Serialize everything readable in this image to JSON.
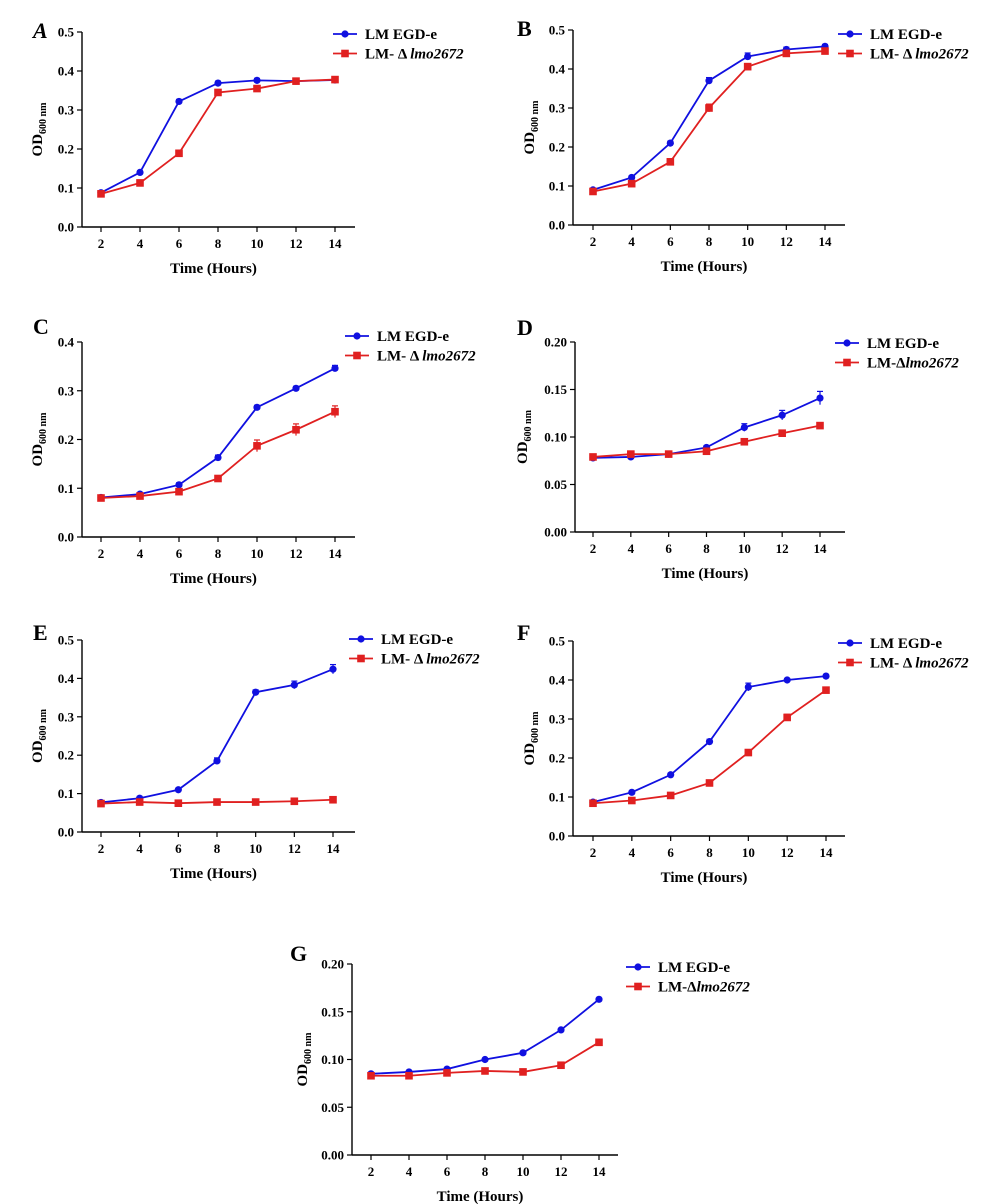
{
  "chart_data": [
    {
      "panel": "A",
      "type": "line",
      "xlabel": "Time (Hours)",
      "ylabel_main": "OD",
      "ylabel_sub": "600 nm",
      "x": [
        2,
        4,
        6,
        8,
        10,
        12,
        14
      ],
      "ylim": [
        0,
        0.5
      ],
      "yticks": [
        0.0,
        0.1,
        0.2,
        0.3,
        0.4,
        0.5
      ],
      "ytick_labels": [
        "0.0",
        "0.1",
        "0.2",
        "0.3",
        "0.4",
        "0.5"
      ],
      "series": [
        {
          "name_prefix": "LM EGD-e",
          "name_italic": "",
          "color": "#1010e0",
          "marker": "circle",
          "values": [
            0.088,
            0.14,
            0.322,
            0.369,
            0.376,
            0.374,
            0.377
          ],
          "errors": [
            0.004,
            0.004,
            0.005,
            0.005,
            0.005,
            0.005,
            0.005
          ]
        },
        {
          "name_prefix": "LM- Δ ",
          "name_italic": "lmo2672",
          "color": "#e02020",
          "marker": "square",
          "values": [
            0.085,
            0.113,
            0.189,
            0.345,
            0.355,
            0.374,
            0.378
          ],
          "errors": [
            0.003,
            0.004,
            0.006,
            0.006,
            0.006,
            0.005,
            0.005
          ]
        }
      ]
    },
    {
      "panel": "B",
      "type": "line",
      "xlabel": "Time (Hours)",
      "ylabel_main": "OD",
      "ylabel_sub": "600 nm",
      "x": [
        2,
        4,
        6,
        8,
        10,
        12,
        14
      ],
      "ylim": [
        0,
        0.5
      ],
      "yticks": [
        0.0,
        0.1,
        0.2,
        0.3,
        0.4,
        0.5
      ],
      "ytick_labels": [
        "0.0",
        "0.1",
        "0.2",
        "0.3",
        "0.4",
        "0.5"
      ],
      "series": [
        {
          "name_prefix": "LM EGD-e",
          "name_italic": "",
          "color": "#1010e0",
          "marker": "circle",
          "values": [
            0.09,
            0.122,
            0.21,
            0.37,
            0.432,
            0.45,
            0.458
          ],
          "errors": [
            0.004,
            0.004,
            0.005,
            0.008,
            0.009,
            0.006,
            0.005
          ]
        },
        {
          "name_prefix": "LM- Δ ",
          "name_italic": "lmo2672",
          "color": "#e02020",
          "marker": "square",
          "values": [
            0.086,
            0.106,
            0.162,
            0.3,
            0.406,
            0.44,
            0.446
          ],
          "errors": [
            0.003,
            0.004,
            0.005,
            0.01,
            0.008,
            0.006,
            0.005
          ]
        }
      ]
    },
    {
      "panel": "C",
      "type": "line",
      "xlabel": "Time (Hours)",
      "ylabel_main": "OD",
      "ylabel_sub": "600 nm",
      "x": [
        2,
        4,
        6,
        8,
        10,
        12,
        14
      ],
      "ylim": [
        0,
        0.4
      ],
      "yticks": [
        0.0,
        0.1,
        0.2,
        0.3,
        0.4
      ],
      "ytick_labels": [
        "0.0",
        "0.1",
        "0.2",
        "0.3",
        "0.4"
      ],
      "series": [
        {
          "name_prefix": "LM EGD-e",
          "name_italic": "",
          "color": "#1010e0",
          "marker": "circle",
          "values": [
            0.081,
            0.088,
            0.107,
            0.163,
            0.266,
            0.305,
            0.346
          ],
          "errors": [
            0.003,
            0.003,
            0.004,
            0.005,
            0.004,
            0.004,
            0.006
          ]
        },
        {
          "name_prefix": "LM- Δ ",
          "name_italic": "lmo2672",
          "color": "#e02020",
          "marker": "square",
          "values": [
            0.08,
            0.084,
            0.093,
            0.12,
            0.187,
            0.22,
            0.257
          ],
          "errors": [
            0.003,
            0.003,
            0.003,
            0.004,
            0.012,
            0.012,
            0.012
          ]
        }
      ]
    },
    {
      "panel": "D",
      "type": "line",
      "xlabel": "Time (Hours)",
      "ylabel_main": "OD",
      "ylabel_sub": "600 nm",
      "x": [
        2,
        4,
        6,
        8,
        10,
        12,
        14
      ],
      "ylim": [
        0,
        0.2
      ],
      "yticks": [
        0.0,
        0.05,
        0.1,
        0.15,
        0.2
      ],
      "ytick_labels": [
        "0.00",
        "0.05",
        "0.10",
        "0.15",
        "0.20"
      ],
      "series": [
        {
          "name_prefix": "LM EGD-e",
          "name_italic": "",
          "color": "#1010e0",
          "marker": "circle",
          "values": [
            0.078,
            0.079,
            0.082,
            0.089,
            0.11,
            0.123,
            0.141
          ],
          "errors": [
            0.001,
            0.001,
            0.001,
            0.002,
            0.004,
            0.005,
            0.007
          ]
        },
        {
          "name_prefix": "LM-Δ",
          "name_italic": "lmo2672",
          "color": "#e02020",
          "marker": "square",
          "values": [
            0.079,
            0.082,
            0.082,
            0.085,
            0.095,
            0.104,
            0.112
          ],
          "errors": [
            0.001,
            0.001,
            0.001,
            0.001,
            0.001,
            0.001,
            0.003
          ]
        }
      ]
    },
    {
      "panel": "E",
      "type": "line",
      "xlabel": "Time (Hours)",
      "ylabel_main": "OD",
      "ylabel_sub": "600 nm",
      "x": [
        2,
        4,
        6,
        8,
        10,
        12,
        14
      ],
      "ylim": [
        0,
        0.5
      ],
      "yticks": [
        0.0,
        0.1,
        0.2,
        0.3,
        0.4,
        0.5
      ],
      "ytick_labels": [
        "0.0",
        "0.1",
        "0.2",
        "0.3",
        "0.4",
        "0.5"
      ],
      "series": [
        {
          "name_prefix": "LM EGD-e",
          "name_italic": "",
          "color": "#1010e0",
          "marker": "circle",
          "values": [
            0.077,
            0.088,
            0.11,
            0.185,
            0.364,
            0.383,
            0.424
          ],
          "errors": [
            0.003,
            0.003,
            0.004,
            0.008,
            0.006,
            0.01,
            0.012
          ]
        },
        {
          "name_prefix": "LM- Δ ",
          "name_italic": "lmo2672",
          "color": "#e02020",
          "marker": "square",
          "values": [
            0.074,
            0.078,
            0.075,
            0.078,
            0.078,
            0.08,
            0.084
          ],
          "errors": [
            0.002,
            0.002,
            0.002,
            0.002,
            0.002,
            0.002,
            0.002
          ]
        }
      ]
    },
    {
      "panel": "F",
      "type": "line",
      "xlabel": "Time (Hours)",
      "ylabel_main": "OD",
      "ylabel_sub": "600 nm",
      "x": [
        2,
        4,
        6,
        8,
        10,
        12,
        14
      ],
      "ylim": [
        0,
        0.5
      ],
      "yticks": [
        0.0,
        0.1,
        0.2,
        0.3,
        0.4,
        0.5
      ],
      "ytick_labels": [
        "0.0",
        "0.1",
        "0.2",
        "0.3",
        "0.4",
        "0.5"
      ],
      "series": [
        {
          "name_prefix": "LM EGD-e",
          "name_italic": "",
          "color": "#1010e0",
          "marker": "circle",
          "values": [
            0.087,
            0.112,
            0.157,
            0.242,
            0.382,
            0.4,
            0.41
          ],
          "errors": [
            0.002,
            0.003,
            0.004,
            0.006,
            0.01,
            0.004,
            0.004
          ]
        },
        {
          "name_prefix": "LM- Δ ",
          "name_italic": "lmo2672",
          "color": "#e02020",
          "marker": "square",
          "values": [
            0.084,
            0.091,
            0.104,
            0.136,
            0.214,
            0.304,
            0.374
          ],
          "errors": [
            0.002,
            0.002,
            0.003,
            0.003,
            0.005,
            0.008,
            0.006
          ]
        }
      ]
    },
    {
      "panel": "G",
      "type": "line",
      "xlabel": "Time (Hours)",
      "ylabel_main": "OD",
      "ylabel_sub": "600 nm",
      "x": [
        2,
        4,
        6,
        8,
        10,
        12,
        14
      ],
      "ylim": [
        0,
        0.2
      ],
      "yticks": [
        0.0,
        0.05,
        0.1,
        0.15,
        0.2
      ],
      "ytick_labels": [
        "0.00",
        "0.05",
        "0.10",
        "0.15",
        "0.20"
      ],
      "series": [
        {
          "name_prefix": "LM EGD-e",
          "name_italic": "",
          "color": "#1010e0",
          "marker": "circle",
          "values": [
            0.085,
            0.087,
            0.09,
            0.1,
            0.107,
            0.131,
            0.163
          ],
          "errors": [
            0.001,
            0.001,
            0.001,
            0.001,
            0.001,
            0.001,
            0.001
          ]
        },
        {
          "name_prefix": "LM-Δ",
          "name_italic": "lmo2672",
          "color": "#e02020",
          "marker": "square",
          "values": [
            0.083,
            0.083,
            0.086,
            0.088,
            0.087,
            0.094,
            0.118
          ],
          "errors": [
            0.001,
            0.001,
            0.001,
            0.001,
            0.001,
            0.001,
            0.001
          ]
        }
      ]
    }
  ]
}
